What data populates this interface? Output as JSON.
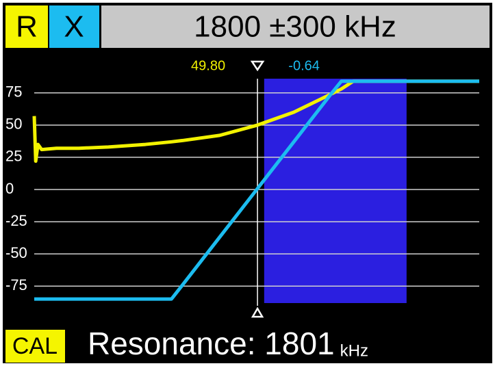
{
  "header": {
    "r": "R",
    "x": "X",
    "span": "1800 ±300 kHz"
  },
  "chart_data": {
    "type": "line",
    "x": [
      1500,
      1502,
      1505,
      1510,
      1530,
      1560,
      1600,
      1650,
      1685,
      1700,
      1750,
      1800,
      1850,
      1900,
      1914,
      1930,
      1950,
      2000,
      2050,
      2100
    ],
    "series": [
      {
        "name": "R",
        "color": "#f2f200",
        "values": [
          57,
          22,
          35,
          31,
          32,
          32,
          33,
          35,
          37,
          38,
          42,
          49.8,
          60,
          74,
          78,
          84,
          84,
          84,
          84,
          84
        ]
      },
      {
        "name": "X",
        "color": "#1cbcf0",
        "values": [
          -85,
          -85,
          -85,
          -85,
          -85,
          -85,
          -85,
          -85,
          -85,
          -74,
          -37,
          0,
          37,
          74,
          84,
          84,
          84,
          84,
          84,
          84
        ]
      }
    ],
    "xlim": [
      1500,
      2100
    ],
    "ylim": [
      -86,
      86
    ],
    "yticks": [
      75,
      50,
      25,
      0,
      -25,
      -50,
      -75
    ],
    "grid": true,
    "band": {
      "range": [
        1810,
        2002
      ],
      "color": "#2b1fe0"
    },
    "marker": {
      "x": 1801,
      "values": [
        49.8,
        -0.64
      ],
      "value_labels": [
        "49.80",
        "-0.64"
      ]
    }
  },
  "footer": {
    "cal": "CAL",
    "label": "Resonance: 1801",
    "unit": "kHz"
  }
}
